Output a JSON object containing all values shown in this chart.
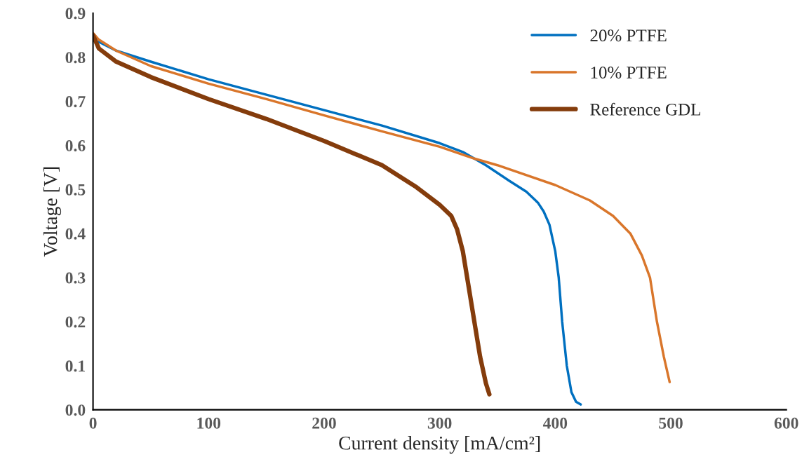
{
  "chart_data": {
    "type": "line",
    "xlabel": "Current density [mA/cm²]",
    "ylabel": "Voltage [V]",
    "xlim": [
      0,
      600
    ],
    "xticks": [
      0,
      100,
      200,
      300,
      400,
      500,
      600
    ],
    "ylim": [
      0,
      0.9
    ],
    "yticks": [
      {
        "value": 0,
        "label": "0.0"
      },
      0.1,
      0.2,
      0.3,
      0.4,
      0.5,
      0.6,
      0.7,
      0.8,
      0.9
    ],
    "grid": false,
    "legend": "top right",
    "marker": "none",
    "line_style": "solid",
    "series": [
      {
        "name": "20% PTFE",
        "color": "#0070c0",
        "x": [
          5,
          20,
          50,
          100,
          150,
          200,
          250,
          300,
          320,
          340,
          360,
          375,
          385,
          390,
          395,
          400,
          403,
          406,
          410,
          414,
          418,
          422
        ],
        "values": [
          0.835,
          0.815,
          0.79,
          0.75,
          0.715,
          0.68,
          0.645,
          0.605,
          0.585,
          0.555,
          0.52,
          0.495,
          0.47,
          0.45,
          0.42,
          0.36,
          0.3,
          0.2,
          0.1,
          0.04,
          0.018,
          0.012
        ]
      },
      {
        "name": "10% PTFE",
        "color": "#d9762b",
        "x": [
          0,
          5,
          20,
          50,
          100,
          150,
          200,
          250,
          300,
          330,
          350,
          400,
          430,
          450,
          465,
          475,
          482,
          488,
          494,
          499
        ],
        "values": [
          0.855,
          0.84,
          0.815,
          0.78,
          0.74,
          0.705,
          0.668,
          0.632,
          0.597,
          0.57,
          0.555,
          0.51,
          0.475,
          0.44,
          0.4,
          0.35,
          0.3,
          0.2,
          0.12,
          0.063
        ]
      },
      {
        "name": "Reference GDL",
        "color": "#843c0c",
        "x": [
          0,
          5,
          20,
          50,
          100,
          150,
          200,
          250,
          280,
          300,
          310,
          315,
          320,
          325,
          330,
          335,
          340,
          343
        ],
        "values": [
          0.85,
          0.82,
          0.79,
          0.755,
          0.705,
          0.66,
          0.61,
          0.555,
          0.505,
          0.465,
          0.44,
          0.41,
          0.36,
          0.28,
          0.2,
          0.12,
          0.06,
          0.035
        ]
      }
    ]
  }
}
